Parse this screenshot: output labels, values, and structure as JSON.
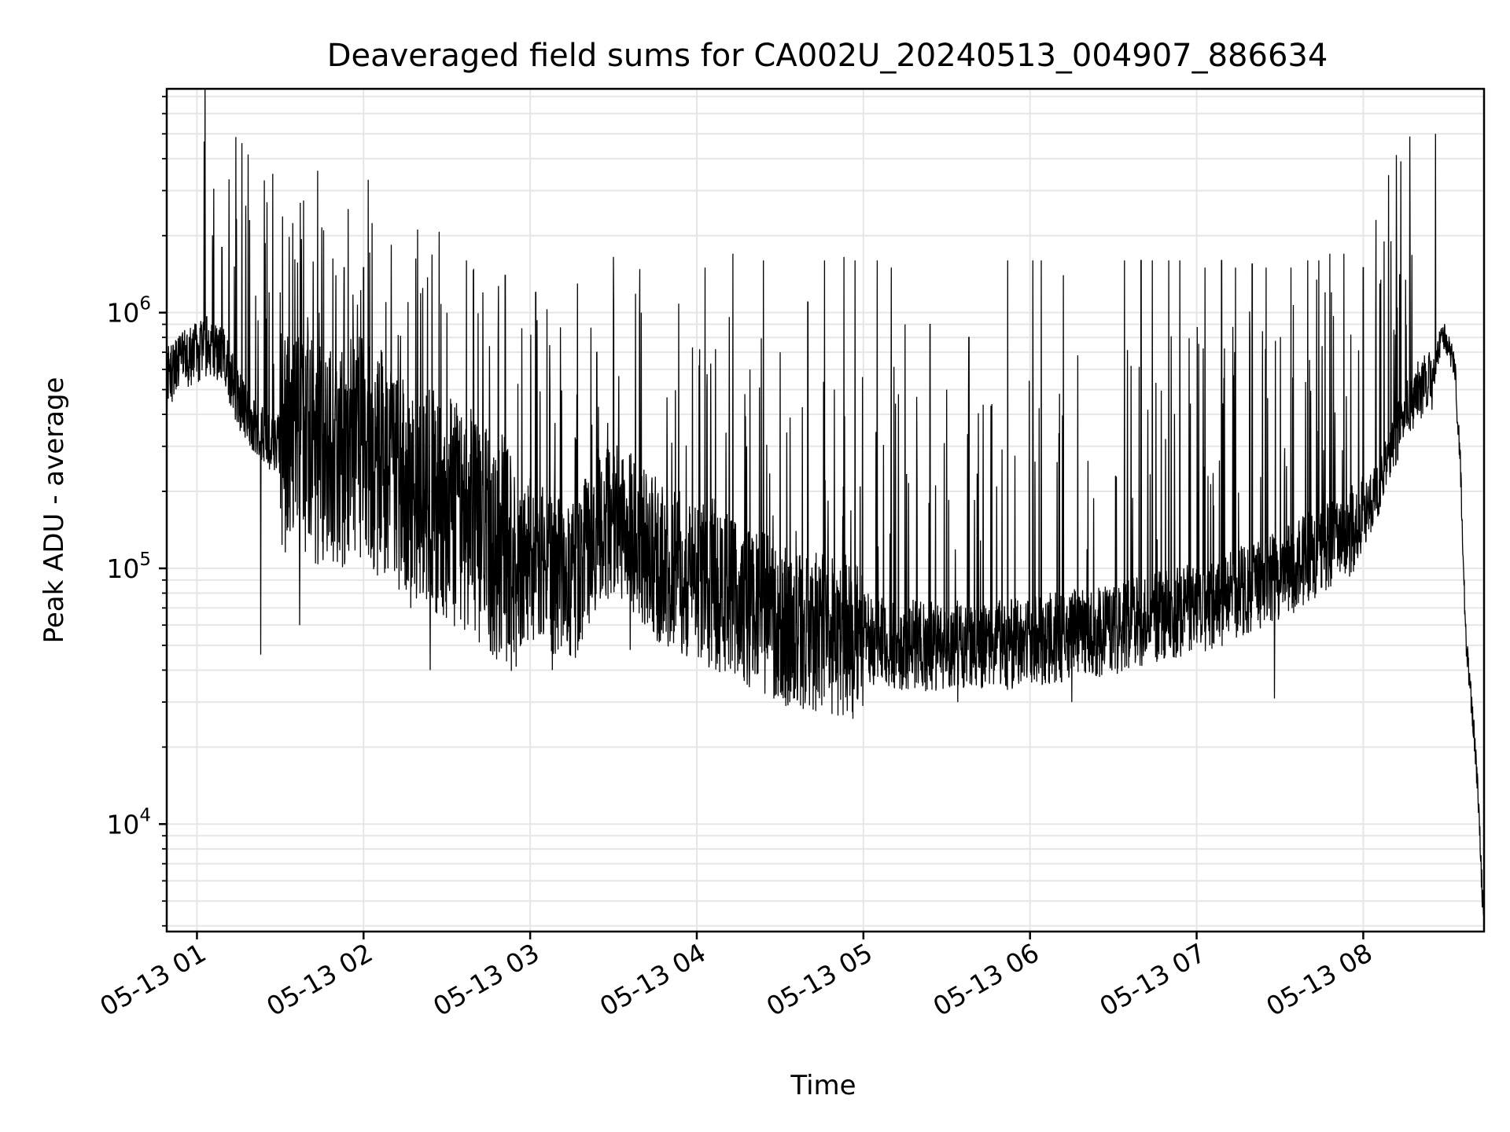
{
  "chart_data": {
    "type": "line",
    "title": "Deaveraged field sums for CA002U_20240513_004907_886634",
    "xlabel": "Time",
    "ylabel": "Peak ADU - average",
    "yscale": "log",
    "xlim": [
      "2024-05-13 00:49:07",
      "2024-05-13 08:43:30"
    ],
    "ylim": [
      3800,
      7500000
    ],
    "grid": true,
    "x_ticks": [
      {
        "t": "2024-05-13 01:00",
        "label": "05-13 01"
      },
      {
        "t": "2024-05-13 02:00",
        "label": "05-13 02"
      },
      {
        "t": "2024-05-13 03:00",
        "label": "05-13 03"
      },
      {
        "t": "2024-05-13 04:00",
        "label": "05-13 04"
      },
      {
        "t": "2024-05-13 05:00",
        "label": "05-13 05"
      },
      {
        "t": "2024-05-13 06:00",
        "label": "05-13 06"
      },
      {
        "t": "2024-05-13 07:00",
        "label": "05-13 07"
      },
      {
        "t": "2024-05-13 08:00",
        "label": "05-13 08"
      }
    ],
    "y_ticks": [
      {
        "value": 10000,
        "base": "10",
        "exp": "4"
      },
      {
        "value": 100000,
        "base": "10",
        "exp": "5"
      },
      {
        "value": 1000000,
        "base": "10",
        "exp": "6"
      }
    ],
    "series": [
      {
        "color": "#000000",
        "x": [
          "00:49",
          "00:55",
          "01:00",
          "01:05",
          "01:10",
          "01:15",
          "01:20",
          "01:25",
          "01:30",
          "01:35",
          "01:40",
          "01:45",
          "01:50",
          "01:55",
          "02:00",
          "02:05",
          "02:10",
          "02:15",
          "02:20",
          "02:25",
          "02:30",
          "02:35",
          "02:40",
          "02:45",
          "02:50",
          "02:55",
          "03:00",
          "03:05",
          "03:10",
          "03:15",
          "03:20",
          "03:25",
          "03:30",
          "03:35",
          "03:40",
          "03:45",
          "03:50",
          "03:55",
          "04:00",
          "04:05",
          "04:10",
          "04:15",
          "04:20",
          "04:25",
          "04:30",
          "04:35",
          "04:40",
          "04:45",
          "04:50",
          "04:55",
          "05:00",
          "05:05",
          "05:10",
          "05:15",
          "05:20",
          "05:25",
          "05:30",
          "05:35",
          "05:40",
          "05:45",
          "05:50",
          "05:55",
          "06:00",
          "06:05",
          "06:10",
          "06:15",
          "06:20",
          "06:25",
          "06:30",
          "06:35",
          "06:40",
          "06:45",
          "06:50",
          "06:55",
          "07:00",
          "07:05",
          "07:10",
          "07:15",
          "07:20",
          "07:25",
          "07:30",
          "07:35",
          "07:40",
          "07:45",
          "07:50",
          "07:55",
          "08:00",
          "08:05",
          "08:10",
          "08:15",
          "08:20",
          "08:25",
          "08:28",
          "08:30",
          "08:33",
          "08:35",
          "08:37",
          "08:39",
          "08:41",
          "08:43"
        ],
        "y": [
          550000,
          650000,
          700000,
          750000,
          650000,
          450000,
          380000,
          320000,
          300000,
          280000,
          300000,
          280000,
          260000,
          280000,
          300000,
          260000,
          240000,
          200000,
          190000,
          180000,
          170000,
          160000,
          150000,
          130000,
          120000,
          100000,
          110000,
          100000,
          90000,
          85000,
          110000,
          150000,
          160000,
          140000,
          130000,
          110000,
          100000,
          95000,
          90000,
          85000,
          80000,
          75000,
          70000,
          65000,
          60000,
          58000,
          57000,
          56000,
          55000,
          54000,
          53000,
          52000,
          51000,
          50000,
          50000,
          50000,
          50000,
          50000,
          50000,
          50000,
          50000,
          51000,
          52000,
          53000,
          54000,
          55000,
          55000,
          56000,
          58000,
          60000,
          62000,
          64000,
          66000,
          68000,
          70000,
          72000,
          75000,
          80000,
          85000,
          90000,
          95000,
          100000,
          110000,
          120000,
          130000,
          140000,
          160000,
          200000,
          300000,
          400000,
          500000,
          550000,
          800000,
          780000,
          600000,
          250000,
          50000,
          30000,
          15000,
          5000
        ],
        "spikes": [
          {
            "t": "01:09",
            "y": 1800000
          },
          {
            "t": "01:19",
            "y": 2300000
          },
          {
            "t": "01:23",
            "y": 46000
          },
          {
            "t": "01:26",
            "y": 1200000
          },
          {
            "t": "01:30",
            "y": 1200000
          },
          {
            "t": "01:37",
            "y": 60000
          },
          {
            "t": "01:44",
            "y": 1000000
          },
          {
            "t": "01:50",
            "y": 1400000
          },
          {
            "t": "01:53",
            "y": 1500000
          },
          {
            "t": "02:00",
            "y": 1500000
          },
          {
            "t": "02:08",
            "y": 1100000
          },
          {
            "t": "02:16",
            "y": 1100000
          },
          {
            "t": "02:24",
            "y": 40000
          },
          {
            "t": "02:30",
            "y": 1000000
          },
          {
            "t": "02:37",
            "y": 1600000
          },
          {
            "t": "02:43",
            "y": 1200000
          },
          {
            "t": "02:51",
            "y": 1400000
          },
          {
            "t": "03:02",
            "y": 1200000
          },
          {
            "t": "03:08",
            "y": 40000
          },
          {
            "t": "03:17",
            "y": 1300000
          },
          {
            "t": "03:24",
            "y": 700000
          },
          {
            "t": "03:30",
            "y": 1650000
          },
          {
            "t": "03:36",
            "y": 48000
          },
          {
            "t": "03:40",
            "y": 1000000
          },
          {
            "t": "04:03",
            "y": 1500000
          },
          {
            "t": "04:13",
            "y": 1700000
          },
          {
            "t": "04:24",
            "y": 1600000
          },
          {
            "t": "04:30",
            "y": 700000
          },
          {
            "t": "04:40",
            "y": 1100000
          },
          {
            "t": "04:46",
            "y": 1600000
          },
          {
            "t": "04:53",
            "y": 1650000
          },
          {
            "t": "04:57",
            "y": 1600000
          },
          {
            "t": "05:05",
            "y": 1600000
          },
          {
            "t": "05:10",
            "y": 1500000
          },
          {
            "t": "05:15",
            "y": 900000
          },
          {
            "t": "05:24",
            "y": 900000
          },
          {
            "t": "05:30",
            "y": 500000
          },
          {
            "t": "05:34",
            "y": 30000
          },
          {
            "t": "05:38",
            "y": 800000
          },
          {
            "t": "05:52",
            "y": 1600000
          },
          {
            "t": "06:01",
            "y": 1600000
          },
          {
            "t": "06:04",
            "y": 1600000
          },
          {
            "t": "06:12",
            "y": 1400000
          },
          {
            "t": "06:15",
            "y": 30000
          },
          {
            "t": "06:34",
            "y": 1600000
          },
          {
            "t": "06:40",
            "y": 1600000
          },
          {
            "t": "06:44",
            "y": 1600000
          },
          {
            "t": "06:50",
            "y": 1600000
          },
          {
            "t": "06:54",
            "y": 1600000
          },
          {
            "t": "07:03",
            "y": 1500000
          },
          {
            "t": "07:09",
            "y": 1600000
          },
          {
            "t": "07:14",
            "y": 1500000
          },
          {
            "t": "07:20",
            "y": 1550000
          },
          {
            "t": "07:25",
            "y": 1500000
          },
          {
            "t": "07:28",
            "y": 31000
          },
          {
            "t": "07:34",
            "y": 1500000
          },
          {
            "t": "07:40",
            "y": 1600000
          },
          {
            "t": "07:44",
            "y": 1600000
          },
          {
            "t": "07:48",
            "y": 1700000
          },
          {
            "t": "07:53",
            "y": 1700000
          },
          {
            "t": "08:00",
            "y": 1500000
          },
          {
            "t": "08:06",
            "y": 1300000
          },
          {
            "t": "08:10",
            "y": 1900000
          },
          {
            "t": "08:12",
            "y": 1700000
          },
          {
            "t": "08:26",
            "y": 5000000
          }
        ]
      }
    ]
  }
}
